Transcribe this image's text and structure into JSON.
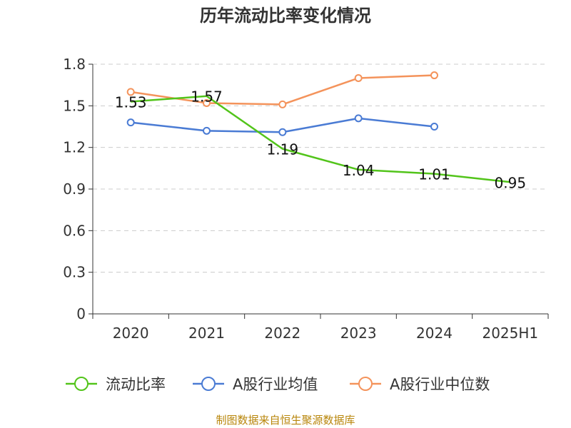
{
  "chart_data": {
    "type": "line",
    "title": "历年流动比率变化情况",
    "categories": [
      "2020",
      "2021",
      "2022",
      "2023",
      "2024",
      "2025H1"
    ],
    "ylim": [
      0,
      1.8
    ],
    "yticks": [
      "0",
      "0.3",
      "0.6",
      "0.9",
      "1.2",
      "1.5",
      "1.8"
    ],
    "grid": true,
    "legend_position": "bottom",
    "series": [
      {
        "name": "流动比率",
        "color": "#52c41a",
        "values": [
          1.53,
          1.57,
          1.19,
          1.04,
          1.01,
          0.95
        ],
        "labels": [
          "1.53",
          "1.57",
          "1.19",
          "1.04",
          "1.01",
          "0.95"
        ]
      },
      {
        "name": "A股行业均值",
        "color": "#4a7bd4",
        "values": [
          1.38,
          1.32,
          1.31,
          1.41,
          1.35,
          null
        ]
      },
      {
        "name": "A股行业中位数",
        "color": "#f4935b",
        "values": [
          1.6,
          1.52,
          1.51,
          1.7,
          1.72,
          null
        ]
      }
    ]
  },
  "source": "制图数据来自恒生聚源数据库"
}
